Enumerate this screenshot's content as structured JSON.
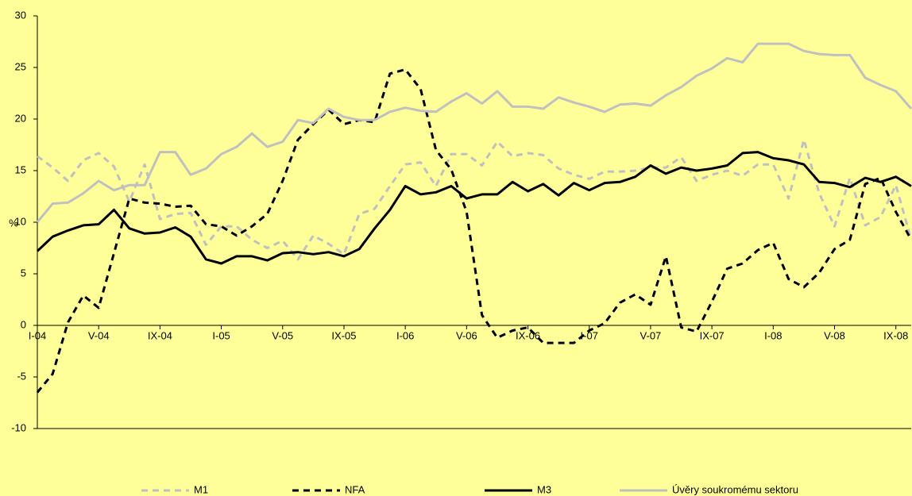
{
  "chart_data": {
    "type": "line",
    "y_label": "%",
    "categories": [
      "I-04",
      null,
      null,
      null,
      "V-04",
      null,
      null,
      null,
      "IX-04",
      null,
      null,
      null,
      "I-05",
      null,
      null,
      null,
      "V-05",
      null,
      null,
      null,
      "IX-05",
      null,
      null,
      null,
      "I-06",
      null,
      null,
      null,
      "V-06",
      null,
      null,
      null,
      "IX-06",
      null,
      null,
      null,
      "I-07",
      null,
      null,
      null,
      "V-07",
      null,
      null,
      null,
      "IX-07",
      null,
      null,
      null,
      "I-08",
      null,
      null,
      null,
      "V-08",
      null,
      null,
      null,
      "IX-08",
      null
    ],
    "ylim": [
      -10,
      30
    ],
    "yticks": [
      -10,
      -5,
      0,
      5,
      10,
      15,
      20,
      25,
      30
    ],
    "series": [
      {
        "name": "M1",
        "color": "#c0c0c0",
        "dash": "dashed",
        "values": [
          16.4,
          15.3,
          14.0,
          16.0,
          16.7,
          15.4,
          12.0,
          15.6,
          10.3,
          10.8,
          10.9,
          7.8,
          9.6,
          9.6,
          8.3,
          7.5,
          8.2,
          6.4,
          8.7,
          7.9,
          6.9,
          10.8,
          11.3,
          13.5,
          15.6,
          15.8,
          13.5,
          16.6,
          16.6,
          15.5,
          17.8,
          16.4,
          16.7,
          16.5,
          15.2,
          14.6,
          14.2,
          14.9,
          14.9,
          15.0,
          15.3,
          15.3,
          16.3,
          14.0,
          14.6,
          15.0,
          14.5,
          15.6,
          15.6,
          12.3,
          18.0,
          12.8,
          9.6,
          14.3,
          9.7,
          10.5,
          13.6,
          8.3
        ]
      },
      {
        "name": "NFA",
        "color": "#000000",
        "dash": "dashed",
        "values": [
          -6.5,
          -4.7,
          0.3,
          2.9,
          1.7,
          7.0,
          12.3,
          11.9,
          11.8,
          11.5,
          11.6,
          9.8,
          9.6,
          8.7,
          9.6,
          10.8,
          14.0,
          18.0,
          19.5,
          20.9,
          19.5,
          19.9,
          19.7,
          24.4,
          24.8,
          22.9,
          17.0,
          15.1,
          11.0,
          1.0,
          -1.2,
          -0.5,
          -0.2,
          -1.7,
          -1.7,
          -1.7,
          -0.5,
          0.2,
          2.2,
          3.0,
          2.0,
          6.7,
          -0.2,
          -0.6,
          2.3,
          5.5,
          6.0,
          7.3,
          8.0,
          4.5,
          3.7,
          5.1,
          7.4,
          8.3,
          13.7,
          14.3,
          11.0,
          8.3
        ]
      },
      {
        "name": "M3",
        "color": "#000000",
        "dash": "solid",
        "values": [
          7.2,
          8.6,
          9.2,
          9.7,
          9.8,
          11.2,
          9.4,
          8.9,
          9.0,
          9.5,
          8.6,
          6.4,
          6.0,
          6.7,
          6.7,
          6.3,
          7.0,
          7.1,
          6.9,
          7.1,
          6.7,
          7.4,
          9.4,
          11.2,
          13.5,
          12.7,
          12.9,
          13.5,
          12.3,
          12.7,
          12.7,
          13.9,
          13.0,
          13.7,
          12.6,
          13.8,
          13.1,
          13.8,
          13.9,
          14.4,
          15.5,
          14.7,
          15.3,
          15.0,
          15.2,
          15.5,
          16.7,
          16.8,
          16.2,
          16.0,
          15.6,
          13.9,
          13.8,
          13.4,
          14.3,
          13.9,
          14.4,
          13.5
        ]
      },
      {
        "name": "Úvěry soukromému sektoru",
        "color": "#c0c0c0",
        "dash": "solid",
        "values": [
          10.0,
          11.8,
          11.9,
          12.8,
          14.0,
          13.1,
          13.6,
          13.6,
          16.8,
          16.8,
          14.6,
          15.2,
          16.6,
          17.3,
          18.6,
          17.3,
          17.8,
          19.9,
          19.6,
          21.0,
          20.2,
          19.9,
          19.9,
          20.7,
          21.1,
          20.8,
          20.7,
          21.7,
          22.5,
          21.5,
          22.7,
          21.2,
          21.2,
          21.0,
          22.1,
          21.6,
          21.2,
          20.7,
          21.4,
          21.5,
          21.3,
          22.3,
          23.1,
          24.2,
          24.9,
          25.9,
          25.5,
          27.3,
          27.3,
          27.3,
          26.6,
          26.3,
          26.2,
          26.2,
          24.0,
          23.3,
          22.7,
          21.0
        ]
      }
    ]
  }
}
